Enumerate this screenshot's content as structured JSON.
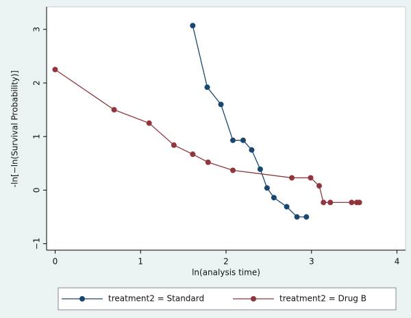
{
  "chart_data": {
    "type": "line",
    "x_label": "ln(analysis time)",
    "y_label": "-ln[−ln(Survival Probability)]",
    "xlim": [
      -0.1,
      4.1
    ],
    "ylim": [
      -1.12,
      3.42
    ],
    "xticks": [
      0,
      1,
      2,
      3,
      4
    ],
    "yticks": [
      {
        "value": -1,
        "label": "−1"
      },
      0,
      1,
      2,
      3
    ],
    "legend": "bottom",
    "series": [
      {
        "name": "treatment2 = Standard",
        "color": "#1a476f",
        "x": [
          1.61,
          1.78,
          1.94,
          2.08,
          2.2,
          2.3,
          2.4,
          2.48,
          2.56,
          2.71,
          2.83,
          2.94
        ],
        "values": [
          3.07,
          1.92,
          1.6,
          0.93,
          0.93,
          0.75,
          0.39,
          0.04,
          -0.14,
          -0.31,
          -0.5,
          -0.5
        ]
      },
      {
        "name": "treatment2 = Drug B",
        "color": "#90353b",
        "x": [
          0,
          0.69,
          1.1,
          1.39,
          1.61,
          1.79,
          2.08,
          2.77,
          2.99,
          3.09,
          3.14,
          3.22,
          3.47,
          3.53,
          3.56
        ],
        "values": [
          2.25,
          1.5,
          1.25,
          0.84,
          0.67,
          0.52,
          0.37,
          0.23,
          0.23,
          0.08,
          -0.23,
          -0.23,
          -0.23,
          -0.23,
          -0.23
        ]
      }
    ]
  }
}
